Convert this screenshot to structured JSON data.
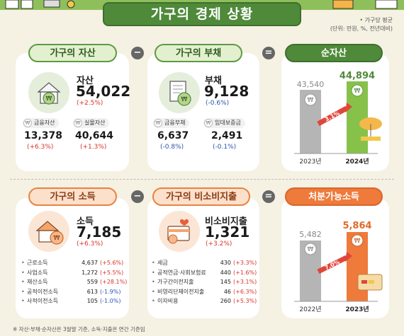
{
  "title": "가구의 경제 상황",
  "unit_note": {
    "line1": "가구당 평균",
    "line2": "(단위: 만원, %, 전년대비)"
  },
  "assets": {
    "header": "가구의 자산",
    "label": "자산",
    "value": "54,022",
    "change": "(+2.5%)",
    "subs": [
      {
        "label": "금융자산",
        "value": "13,378",
        "change": "(+6.3%)"
      },
      {
        "label": "실물자산",
        "value": "40,644",
        "change": "(+1.3%)"
      }
    ]
  },
  "debt": {
    "header": "가구의 부채",
    "label": "부채",
    "value": "9,128",
    "change": "(-0.6%)",
    "subs": [
      {
        "label": "금융부채",
        "value": "6,637",
        "change": "(-0.8%)"
      },
      {
        "label": "임대보증금",
        "value": "2,491",
        "change": "(-0.1%)"
      }
    ]
  },
  "net_assets": {
    "header": "순자산",
    "bars": [
      {
        "year": "2023년",
        "value": "43,540"
      },
      {
        "year": "2024년",
        "value": "44,894"
      }
    ],
    "growth": "3.1%"
  },
  "income": {
    "header": "가구의 소득",
    "label": "소득",
    "value": "7,185",
    "change": "(+6.3%)",
    "items": [
      {
        "name": "근로소득",
        "value": "4,637",
        "change": "(+5.6%)"
      },
      {
        "name": "사업소득",
        "value": "1,272",
        "change": "(+5.5%)"
      },
      {
        "name": "재산소득",
        "value": "559",
        "change": "(+28.1%)"
      },
      {
        "name": "공적이전소득",
        "value": "613",
        "change": "(-1.9%)"
      },
      {
        "name": "사적이전소득",
        "value": "105",
        "change": "(-1.0%)"
      }
    ]
  },
  "non_consumption": {
    "header": "가구의 비소비지출",
    "label": "비소비지출",
    "value": "1,321",
    "change": "(+3.2%)",
    "items": [
      {
        "name": "세금",
        "value": "430",
        "change": "(+3.3%)"
      },
      {
        "name": "공적연금·사회보험료",
        "value": "440",
        "change": "(+1.6%)"
      },
      {
        "name": "가구간이전지출",
        "value": "145",
        "change": "(+3.1%)"
      },
      {
        "name": "비영리단체이전지출",
        "value": "46",
        "change": "(+6.3%)"
      },
      {
        "name": "이자비용",
        "value": "260",
        "change": "(+5.3%)"
      }
    ]
  },
  "disposable_income": {
    "header": "처분가능소득",
    "bars": [
      {
        "year": "2022년",
        "value": "5,482"
      },
      {
        "year": "2023년",
        "value": "5,864"
      }
    ],
    "growth": "7.0%"
  },
  "operators": {
    "minus": "−",
    "equals": "="
  },
  "coin_symbol": "₩",
  "footnote": "※ 자산·부채·순자산은 3월말 기준, 소득·지출은 연간 기준임",
  "colors": {
    "green": "#4f8a3a",
    "orange": "#ee7a3b",
    "red": "#d8342a",
    "blue": "#2a55a8"
  }
}
